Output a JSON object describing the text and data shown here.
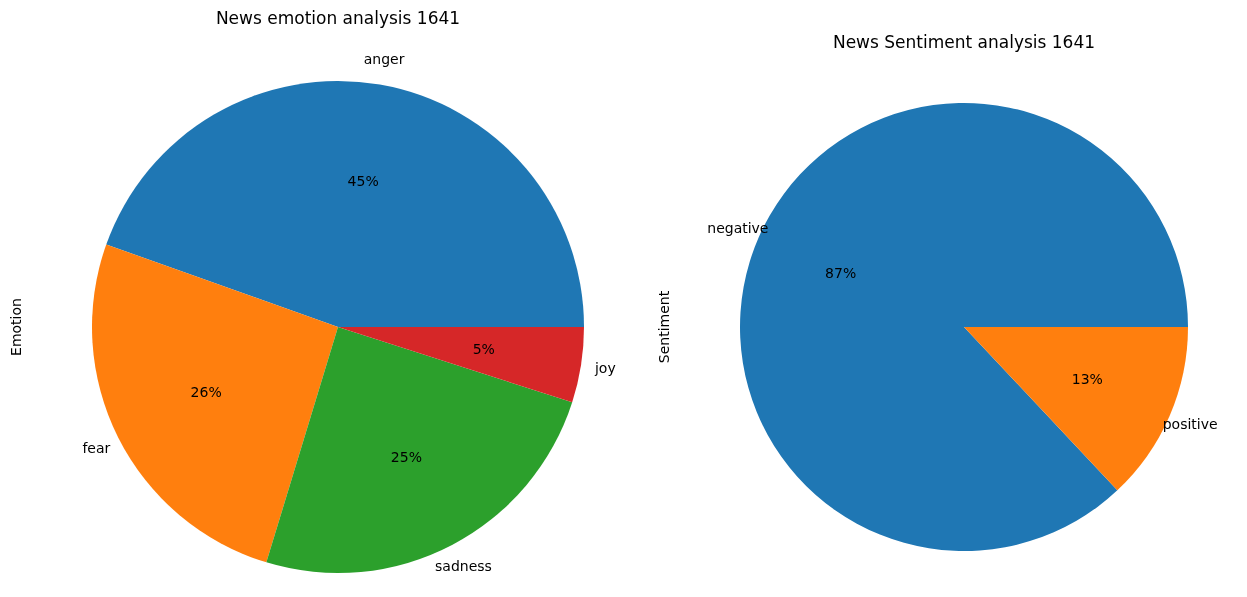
{
  "chart_data": [
    {
      "type": "pie",
      "title": "News emotion analysis 1641",
      "ylabel": "Emotion",
      "categories": [
        "anger",
        "fear",
        "sadness",
        "joy"
      ],
      "values": [
        45,
        26,
        25,
        5
      ],
      "colors": [
        "#1f77b4",
        "#ff7f0e",
        "#2ca02c",
        "#d62728"
      ],
      "value_labels": [
        "45%",
        "26%",
        "25%",
        "5%"
      ]
    },
    {
      "type": "pie",
      "title": "News Sentiment analysis 1641",
      "ylabel": "Sentiment",
      "categories": [
        "negative",
        "positive"
      ],
      "values": [
        87,
        13
      ],
      "colors": [
        "#1f77b4",
        "#ff7f0e"
      ],
      "value_labels": [
        "87%",
        "13%"
      ]
    }
  ]
}
